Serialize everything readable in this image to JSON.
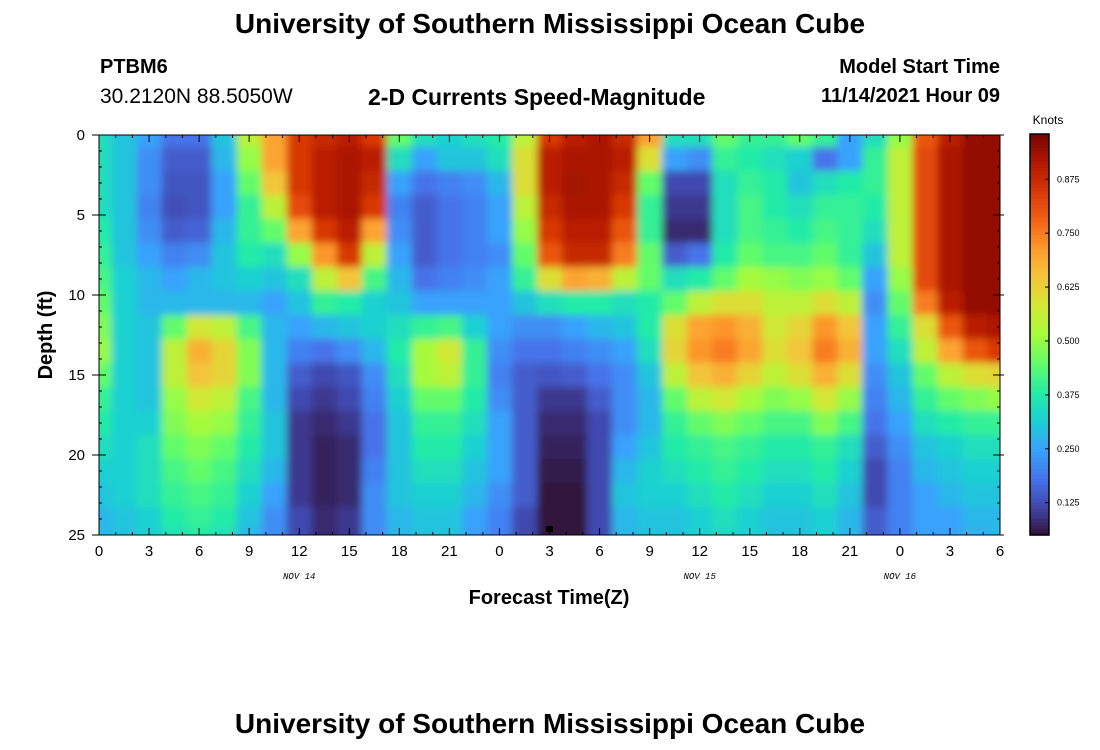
{
  "header": {
    "title": "University of Southern Mississippi Ocean Cube",
    "station": "PTBM6",
    "coords": "30.2120N  88.5050W",
    "subtitle": "2-D Currents Speed-Magnitude",
    "model_start_label": "Model Start Time",
    "model_start_value": "11/14/2021 Hour 09"
  },
  "footer": {
    "title": "University of Southern Mississippi Ocean Cube"
  },
  "chart_data": {
    "type": "heatmap",
    "title": "2-D Currents Speed-Magnitude",
    "xlabel": "Forecast Time(Z)",
    "ylabel": "Depth (ft)",
    "x_hours_from_nov14_00": [
      0,
      54
    ],
    "x_ticks": [
      "0",
      "3",
      "6",
      "9",
      "12",
      "15",
      "18",
      "21",
      "0",
      "3",
      "6",
      "9",
      "12",
      "15",
      "18",
      "21",
      "0",
      "3",
      "6"
    ],
    "date_labels": [
      "NOV 14",
      "NOV 15",
      "NOV 16"
    ],
    "date_label_hours": [
      12,
      36,
      48
    ],
    "y_ticks": [
      "0",
      "5",
      "10",
      "15",
      "20",
      "25"
    ],
    "ylim": [
      0,
      25
    ],
    "colorbar": {
      "units": "Knots",
      "range": [
        0.05,
        0.98
      ],
      "ticks": [
        "0.875",
        "0.750",
        "0.625",
        "0.500",
        "0.375",
        "0.250",
        "0.125"
      ],
      "tick_values": [
        0.875,
        0.75,
        0.625,
        0.5,
        0.375,
        0.25,
        0.125
      ],
      "colors": [
        "#30123b",
        "#4145ab",
        "#4675ed",
        "#39a2fc",
        "#1bcfd4",
        "#24eca6",
        "#61fc6c",
        "#a4fc3b",
        "#d1e834",
        "#f3c63a",
        "#fe9b2d",
        "#f36315",
        "#d93806",
        "#b11901",
        "#7a0402"
      ]
    },
    "depth_rows_ft": [
      0,
      1.5,
      3,
      4.5,
      6,
      7.5,
      9,
      10.5,
      12,
      13.5,
      15,
      16.5,
      18,
      19.5,
      21,
      22.5,
      24,
      25
    ],
    "time_cols_h": [
      0,
      1.5,
      3,
      4.5,
      6,
      7.5,
      9,
      10.5,
      12,
      13.5,
      15,
      16.5,
      18,
      19.5,
      21,
      22.5,
      24,
      25.5,
      27,
      28.5,
      30,
      31.5,
      33,
      34.5,
      36,
      37.5,
      39,
      40.5,
      42,
      43.5,
      45,
      46.5,
      48,
      49.5,
      51,
      52.5,
      54
    ],
    "speed_knots": [
      [
        0.35,
        0.3,
        0.25,
        0.18,
        0.18,
        0.3,
        0.55,
        0.7,
        0.85,
        0.88,
        0.9,
        0.85,
        0.45,
        0.35,
        0.32,
        0.35,
        0.38,
        0.55,
        0.85,
        0.9,
        0.92,
        0.88,
        0.7,
        0.35,
        0.35,
        0.45,
        0.4,
        0.4,
        0.45,
        0.4,
        0.25,
        0.35,
        0.5,
        0.8,
        0.9,
        0.95,
        0.95
      ],
      [
        0.35,
        0.3,
        0.22,
        0.15,
        0.15,
        0.28,
        0.5,
        0.7,
        0.85,
        0.9,
        0.92,
        0.9,
        0.35,
        0.25,
        0.3,
        0.3,
        0.35,
        0.6,
        0.9,
        0.92,
        0.92,
        0.9,
        0.6,
        0.25,
        0.22,
        0.4,
        0.38,
        0.35,
        0.32,
        0.18,
        0.25,
        0.4,
        0.55,
        0.82,
        0.92,
        0.95,
        0.95
      ],
      [
        0.35,
        0.3,
        0.22,
        0.14,
        0.14,
        0.25,
        0.45,
        0.65,
        0.85,
        0.9,
        0.92,
        0.88,
        0.25,
        0.18,
        0.2,
        0.22,
        0.28,
        0.6,
        0.9,
        0.93,
        0.92,
        0.88,
        0.45,
        0.12,
        0.12,
        0.35,
        0.4,
        0.38,
        0.3,
        0.35,
        0.38,
        0.4,
        0.55,
        0.82,
        0.92,
        0.95,
        0.95
      ],
      [
        0.35,
        0.3,
        0.2,
        0.13,
        0.14,
        0.25,
        0.4,
        0.55,
        0.82,
        0.9,
        0.92,
        0.85,
        0.2,
        0.15,
        0.18,
        0.2,
        0.25,
        0.55,
        0.88,
        0.92,
        0.92,
        0.85,
        0.4,
        0.1,
        0.1,
        0.35,
        0.42,
        0.38,
        0.35,
        0.4,
        0.4,
        0.38,
        0.55,
        0.82,
        0.92,
        0.95,
        0.95
      ],
      [
        0.38,
        0.3,
        0.22,
        0.15,
        0.16,
        0.28,
        0.4,
        0.45,
        0.7,
        0.85,
        0.9,
        0.7,
        0.22,
        0.15,
        0.18,
        0.2,
        0.25,
        0.5,
        0.85,
        0.9,
        0.9,
        0.8,
        0.4,
        0.08,
        0.08,
        0.35,
        0.42,
        0.4,
        0.38,
        0.42,
        0.4,
        0.35,
        0.55,
        0.82,
        0.92,
        0.95,
        0.95
      ],
      [
        0.4,
        0.3,
        0.25,
        0.2,
        0.22,
        0.3,
        0.38,
        0.35,
        0.5,
        0.72,
        0.85,
        0.55,
        0.25,
        0.15,
        0.18,
        0.2,
        0.22,
        0.45,
        0.8,
        0.88,
        0.88,
        0.75,
        0.45,
        0.15,
        0.18,
        0.38,
        0.45,
        0.42,
        0.42,
        0.45,
        0.4,
        0.3,
        0.55,
        0.82,
        0.92,
        0.95,
        0.95
      ],
      [
        0.42,
        0.32,
        0.28,
        0.25,
        0.28,
        0.3,
        0.32,
        0.3,
        0.35,
        0.55,
        0.65,
        0.42,
        0.28,
        0.18,
        0.2,
        0.22,
        0.25,
        0.4,
        0.6,
        0.7,
        0.68,
        0.55,
        0.45,
        0.35,
        0.38,
        0.45,
        0.52,
        0.5,
        0.48,
        0.5,
        0.45,
        0.25,
        0.5,
        0.82,
        0.92,
        0.95,
        0.95
      ],
      [
        0.45,
        0.32,
        0.28,
        0.28,
        0.28,
        0.28,
        0.28,
        0.25,
        0.3,
        0.4,
        0.38,
        0.32,
        0.3,
        0.25,
        0.25,
        0.25,
        0.25,
        0.3,
        0.35,
        0.38,
        0.38,
        0.35,
        0.38,
        0.45,
        0.55,
        0.6,
        0.6,
        0.55,
        0.55,
        0.6,
        0.55,
        0.22,
        0.45,
        0.75,
        0.9,
        0.95,
        0.95
      ],
      [
        0.48,
        0.32,
        0.3,
        0.45,
        0.58,
        0.55,
        0.42,
        0.28,
        0.25,
        0.28,
        0.3,
        0.32,
        0.35,
        0.4,
        0.42,
        0.32,
        0.25,
        0.22,
        0.22,
        0.25,
        0.28,
        0.3,
        0.38,
        0.6,
        0.7,
        0.72,
        0.68,
        0.58,
        0.62,
        0.72,
        0.65,
        0.25,
        0.4,
        0.6,
        0.8,
        0.9,
        0.92
      ],
      [
        0.5,
        0.32,
        0.3,
        0.55,
        0.68,
        0.62,
        0.48,
        0.28,
        0.2,
        0.18,
        0.22,
        0.28,
        0.38,
        0.52,
        0.58,
        0.4,
        0.22,
        0.18,
        0.18,
        0.2,
        0.22,
        0.25,
        0.35,
        0.62,
        0.72,
        0.75,
        0.7,
        0.6,
        0.65,
        0.75,
        0.68,
        0.25,
        0.35,
        0.55,
        0.7,
        0.8,
        0.85
      ],
      [
        0.45,
        0.32,
        0.3,
        0.55,
        0.65,
        0.62,
        0.48,
        0.28,
        0.15,
        0.12,
        0.14,
        0.22,
        0.35,
        0.52,
        0.55,
        0.4,
        0.2,
        0.15,
        0.14,
        0.15,
        0.18,
        0.22,
        0.3,
        0.55,
        0.65,
        0.68,
        0.62,
        0.55,
        0.6,
        0.68,
        0.6,
        0.22,
        0.3,
        0.45,
        0.55,
        0.6,
        0.62
      ],
      [
        0.4,
        0.32,
        0.3,
        0.5,
        0.58,
        0.55,
        0.42,
        0.28,
        0.12,
        0.1,
        0.12,
        0.2,
        0.32,
        0.45,
        0.45,
        0.38,
        0.22,
        0.15,
        0.1,
        0.1,
        0.15,
        0.22,
        0.28,
        0.45,
        0.55,
        0.58,
        0.52,
        0.48,
        0.5,
        0.58,
        0.5,
        0.2,
        0.28,
        0.4,
        0.45,
        0.48,
        0.5
      ],
      [
        0.38,
        0.32,
        0.32,
        0.48,
        0.52,
        0.5,
        0.4,
        0.3,
        0.1,
        0.08,
        0.1,
        0.18,
        0.3,
        0.4,
        0.4,
        0.35,
        0.25,
        0.15,
        0.08,
        0.08,
        0.12,
        0.22,
        0.28,
        0.4,
        0.45,
        0.48,
        0.45,
        0.42,
        0.42,
        0.48,
        0.42,
        0.18,
        0.25,
        0.35,
        0.38,
        0.4,
        0.4
      ],
      [
        0.35,
        0.32,
        0.35,
        0.45,
        0.48,
        0.45,
        0.38,
        0.3,
        0.1,
        0.07,
        0.08,
        0.18,
        0.3,
        0.38,
        0.38,
        0.32,
        0.25,
        0.15,
        0.07,
        0.07,
        0.12,
        0.25,
        0.3,
        0.38,
        0.4,
        0.42,
        0.4,
        0.38,
        0.38,
        0.4,
        0.35,
        0.15,
        0.22,
        0.3,
        0.32,
        0.35,
        0.35
      ],
      [
        0.32,
        0.32,
        0.35,
        0.42,
        0.45,
        0.42,
        0.35,
        0.28,
        0.1,
        0.07,
        0.08,
        0.2,
        0.3,
        0.35,
        0.35,
        0.3,
        0.25,
        0.15,
        0.06,
        0.06,
        0.12,
        0.28,
        0.32,
        0.35,
        0.38,
        0.4,
        0.38,
        0.35,
        0.35,
        0.38,
        0.32,
        0.12,
        0.2,
        0.28,
        0.3,
        0.32,
        0.32
      ],
      [
        0.3,
        0.32,
        0.35,
        0.4,
        0.42,
        0.4,
        0.32,
        0.25,
        0.1,
        0.07,
        0.08,
        0.22,
        0.3,
        0.32,
        0.32,
        0.28,
        0.22,
        0.15,
        0.05,
        0.05,
        0.12,
        0.3,
        0.32,
        0.32,
        0.35,
        0.38,
        0.35,
        0.32,
        0.32,
        0.35,
        0.3,
        0.12,
        0.2,
        0.25,
        0.28,
        0.3,
        0.3
      ],
      [
        0.28,
        0.3,
        0.32,
        0.38,
        0.4,
        0.38,
        0.3,
        0.22,
        0.12,
        0.08,
        0.1,
        0.22,
        0.28,
        0.3,
        0.3,
        0.25,
        0.2,
        0.12,
        0.05,
        0.05,
        0.12,
        0.28,
        0.3,
        0.3,
        0.32,
        0.35,
        0.32,
        0.3,
        0.3,
        0.32,
        0.28,
        0.15,
        0.2,
        0.25,
        0.25,
        0.28,
        0.28
      ],
      [
        0.28,
        0.3,
        0.32,
        0.36,
        0.38,
        0.36,
        0.28,
        0.22,
        0.12,
        0.08,
        0.1,
        0.22,
        0.28,
        0.3,
        0.3,
        0.25,
        0.2,
        0.12,
        0.05,
        0.05,
        0.12,
        0.28,
        0.3,
        0.3,
        0.32,
        0.34,
        0.32,
        0.3,
        0.3,
        0.32,
        0.28,
        0.15,
        0.2,
        0.25,
        0.25,
        0.27,
        0.28
      ]
    ]
  }
}
